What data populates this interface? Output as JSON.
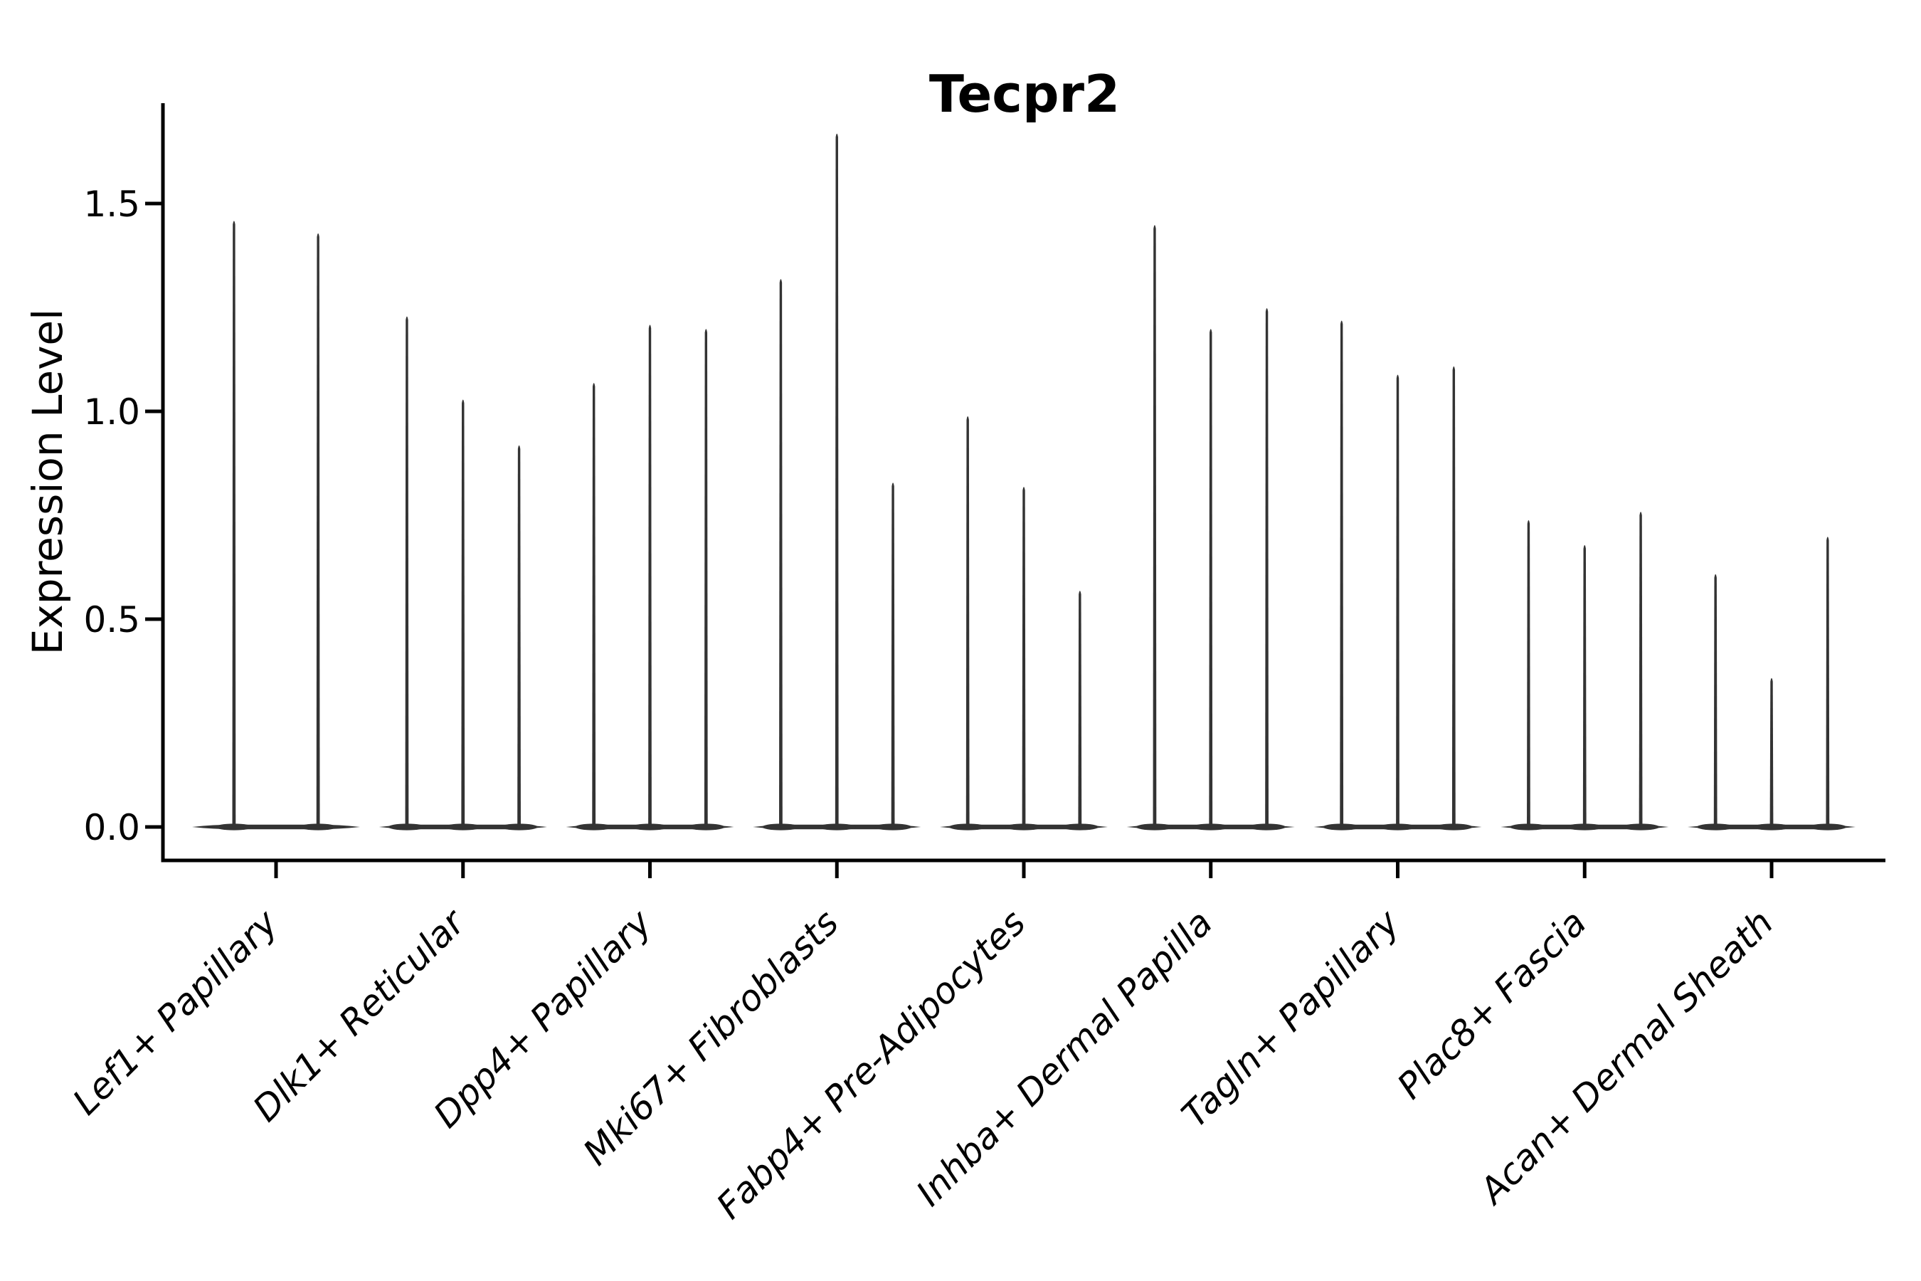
{
  "figure": {
    "background": "#ffffff",
    "violin_color": "#333333",
    "axis_color": "#000000",
    "text_color": "#000000"
  },
  "chart_data": {
    "type": "violin",
    "title": "Tecpr2",
    "xlabel": "",
    "ylabel": "Expression Level",
    "yticks": [
      "0.0",
      "0.5",
      "1.0",
      "1.5"
    ],
    "ytick_values": [
      0.0,
      0.5,
      1.0,
      1.5
    ],
    "ylim": [
      -0.08,
      1.74
    ],
    "grid": false,
    "legend": "none",
    "categories": [
      "Lef1+ Papillary",
      "Dlk1+ Reticular",
      "Dpp4+ Papillary",
      "Mki67+ Fibroblasts",
      "Fabp4+ Pre-Adipocytes",
      "Inhba+ Dermal Papilla",
      "Tagln+ Papillary",
      "Plac8+ Fascia",
      "Acan+ Dermal Sheath"
    ],
    "series_note": "each group shows thin spike violins; values are the max expression level reached by each violin tip, violin bodies are flat at 0",
    "groups": [
      {
        "category": "Lef1+ Papillary",
        "violin_max": [
          1.46,
          1.43
        ]
      },
      {
        "category": "Dlk1+ Reticular",
        "violin_max": [
          1.23,
          1.03,
          0.92
        ]
      },
      {
        "category": "Dpp4+ Papillary",
        "violin_max": [
          1.07,
          1.21,
          1.2
        ]
      },
      {
        "category": "Mki67+ Fibroblasts",
        "violin_max": [
          1.32,
          1.67,
          0.83
        ]
      },
      {
        "category": "Fabp4+ Pre-Adipocytes",
        "violin_max": [
          0.99,
          0.82,
          0.57
        ]
      },
      {
        "category": "Inhba+ Dermal Papilla",
        "violin_max": [
          1.45,
          1.2,
          1.25
        ]
      },
      {
        "category": "Tagln+ Papillary",
        "violin_max": [
          1.22,
          1.09,
          1.11
        ]
      },
      {
        "category": "Plac8+ Fascia",
        "violin_max": [
          0.74,
          0.68,
          0.76
        ]
      },
      {
        "category": "Acan+ Dermal Sheath",
        "violin_max": [
          0.61,
          0.36,
          0.7
        ]
      }
    ]
  }
}
